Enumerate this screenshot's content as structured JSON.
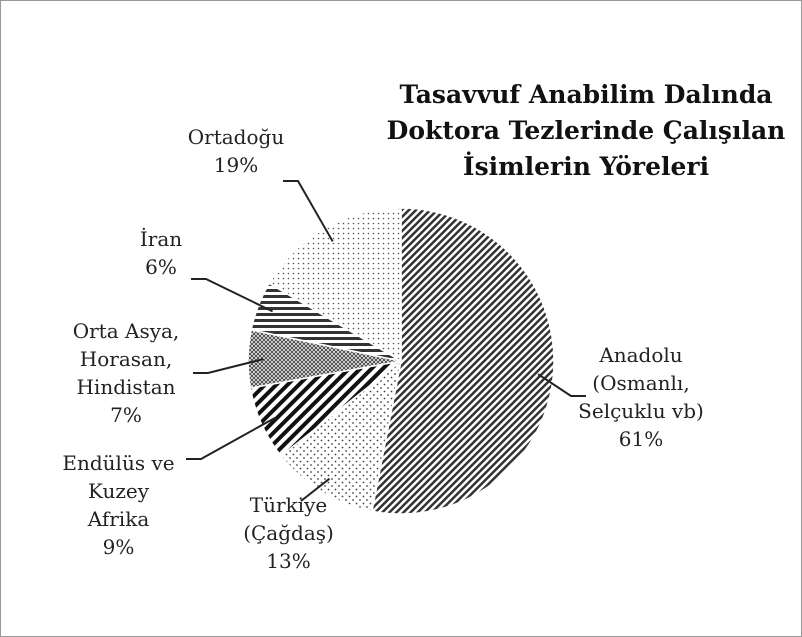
{
  "chart_data": {
    "type": "pie",
    "title": "Tasavvuf Anabilim Dalında Doktora Tezlerinde Çalışılan İsimlerin Yöreleri",
    "categories": [
      "Anadolu (Osmanlı, Selçuklu vb)",
      "Türkiye (Çağdaş)",
      "Endülüs ve Kuzey Afrika",
      "Orta Asya, Horasan, Hindistan",
      "İran",
      "Ortadoğu"
    ],
    "values": [
      61,
      13,
      9,
      7,
      6,
      19
    ],
    "value_labels": [
      "61%",
      "13%",
      "9%",
      "7%",
      "6%",
      "19%"
    ]
  }
}
